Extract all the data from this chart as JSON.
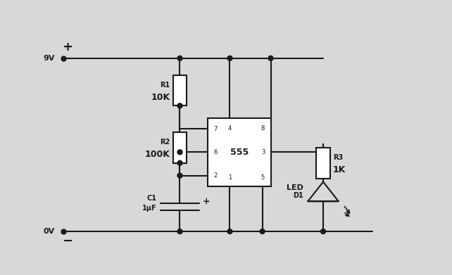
{
  "bg_color": "#d8d8d8",
  "line_color": "#1a1a1a",
  "lw": 1.5,
  "fig_width": 6.42,
  "fig_height": 3.91,
  "dpi": 100,
  "labels": {
    "9v": "9V",
    "0v": "0V",
    "plus_top": "+",
    "minus_bot": "−",
    "R1": "R1",
    "R1_val": "10K",
    "R2": "R2",
    "R2_val": "100K",
    "C1": "C1",
    "C1_val": "1μF",
    "C1_plus": "+",
    "R3": "R3",
    "R3_val": "1K",
    "LED_lbl": "LED",
    "D1": "D1",
    "timer": "555",
    "pin7": "7",
    "pin4": "4",
    "pin8": "8",
    "pin6": "6",
    "pin3": "3",
    "pin2": "2",
    "pin1": "1",
    "pin5": "5"
  }
}
